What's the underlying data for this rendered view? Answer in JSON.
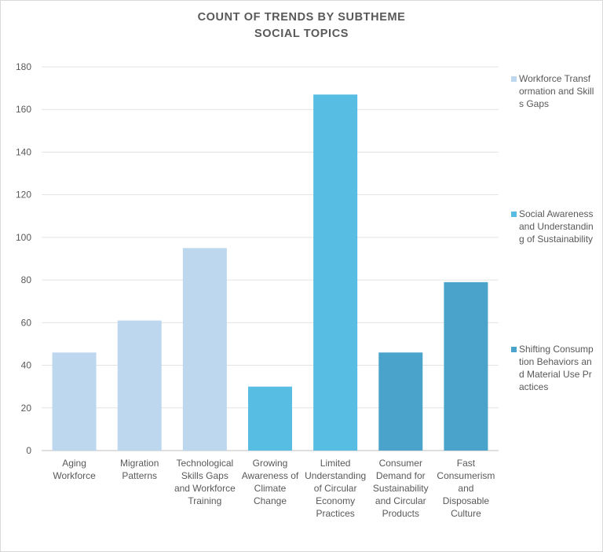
{
  "chart_data": {
    "type": "bar",
    "title": "COUNT OF TRENDS BY SUBTHEME",
    "subtitle": "SOCIAL TOPICS",
    "xlabel": "",
    "ylabel": "",
    "ylim": [
      0,
      180
    ],
    "yticks": [
      "0",
      "20",
      "40",
      "60",
      "80",
      "100",
      "120",
      "140",
      "160",
      "180"
    ],
    "grid": true,
    "legend_position": "right",
    "categories": [
      "Aging Workforce",
      "Migration Patterns",
      "Technological Skills Gaps and Workforce Training",
      "Growing Awareness of Climate Change",
      "Limited Understanding of Circular Economy Practices",
      "Consumer Demand for Sustainability and Circular Products",
      "Fast Consumerism and Disposable Culture"
    ],
    "category_lines": [
      [
        "Aging",
        "Workforce"
      ],
      [
        "Migration",
        "Patterns"
      ],
      [
        "Technological",
        "Skills Gaps",
        "and Workforce",
        "Training"
      ],
      [
        "Growing",
        "Awareness of",
        "Climate",
        "Change"
      ],
      [
        "Limited",
        "Understanding",
        "of Circular",
        "Economy",
        "Practices"
      ],
      [
        "Consumer",
        "Demand for",
        "Sustainability",
        "and Circular",
        "Products"
      ],
      [
        "Fast",
        "Consumerism",
        "and",
        "Disposable",
        "Culture"
      ]
    ],
    "values": [
      46,
      61,
      95,
      30,
      167,
      46,
      79
    ],
    "series_index": [
      0,
      0,
      0,
      1,
      1,
      2,
      2
    ],
    "series": [
      {
        "name": "Workforce Transformation and Skills Gaps",
        "color": "#bcd7ee"
      },
      {
        "name": "Social Awareness and Understanding of Sustainability",
        "color": "#57bde3"
      },
      {
        "name": "Shifting Consumption Behaviors and Material Use Practices",
        "color": "#4aa3cb"
      }
    ]
  }
}
